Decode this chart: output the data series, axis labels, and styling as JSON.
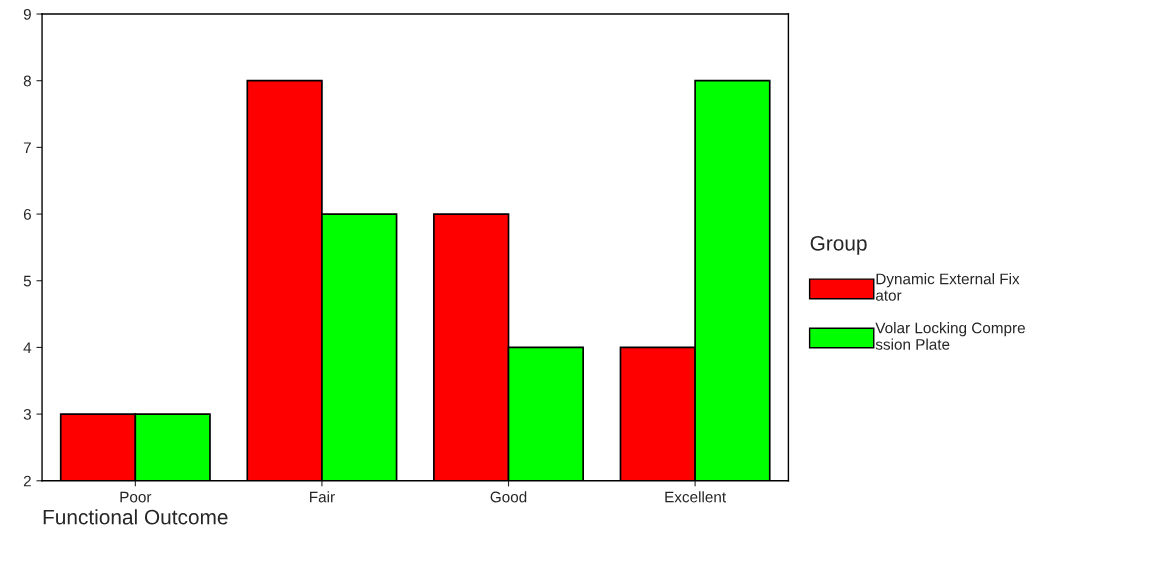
{
  "chart_data": {
    "type": "bar",
    "xlabel": "Functional Outcome",
    "legend_title": "Group",
    "categories": [
      "Poor",
      "Fair",
      "Good",
      "Excellent"
    ],
    "series": [
      {
        "name": "Dynamic External Fix\nator",
        "color": "#ff0000",
        "values": [
          3,
          8,
          6,
          4
        ]
      },
      {
        "name": "Volar Locking Compre\nssion Plate",
        "color": "#00ff00",
        "values": [
          3,
          6,
          4,
          8
        ]
      }
    ],
    "ylim": [
      2,
      9
    ],
    "yticks": [
      2,
      3,
      4,
      5,
      6,
      7,
      8,
      9
    ],
    "grid": false,
    "legend": "right"
  }
}
